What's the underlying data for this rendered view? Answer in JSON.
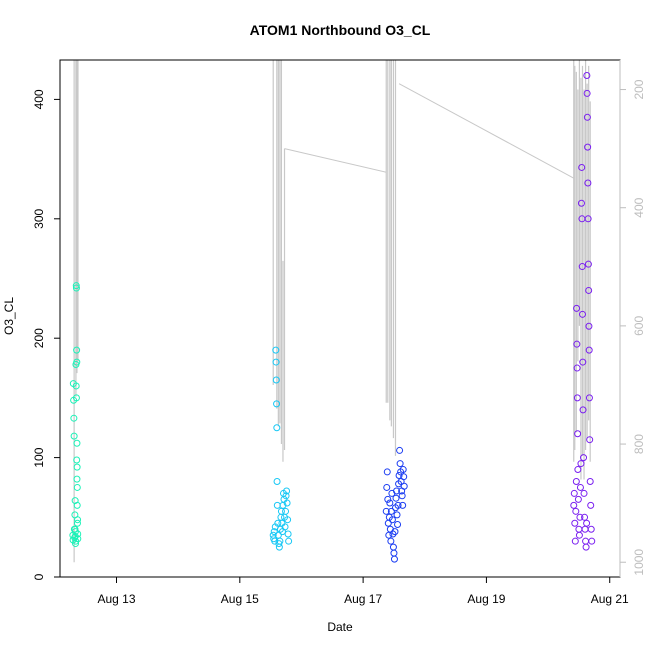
{
  "chart_data": {
    "type": "scatter",
    "title": "ATOM1 Northbound O3_CL",
    "xlabel": "Date",
    "ylabel": "O3_CL",
    "xlim": [
      "2023-08-12T02:00",
      "2023-08-21T04:00"
    ],
    "ylim": [
      0,
      433
    ],
    "x_ticks": [
      {
        "label": "Aug 13",
        "value": "2023-08-13"
      },
      {
        "label": "Aug 15",
        "value": "2023-08-15"
      },
      {
        "label": "Aug 17",
        "value": "2023-08-17"
      },
      {
        "label": "Aug 19",
        "value": "2023-08-19"
      },
      {
        "label": "Aug 21",
        "value": "2023-08-21"
      }
    ],
    "y_ticks": [
      0,
      100,
      200,
      300,
      400
    ],
    "y2_ticks": [
      200,
      400,
      600,
      800,
      1000
    ],
    "y2_range": [
      1025,
      150
    ],
    "grid": false,
    "colors": {
      "point_colors": [
        "#1cf2b8",
        "#18c8f5",
        "#1a3cf2",
        "#7a1ff0"
      ],
      "gray_line": "#c8c8c8",
      "axis": "#000000",
      "right_axis": "#bdbdbd"
    },
    "point_clusters": [
      {
        "start": "2023-08-12T07:00",
        "end": "2023-08-12T09:00",
        "color": "#1cf2b8"
      },
      {
        "start": "2023-08-15T13:00",
        "end": "2023-08-15T19:00",
        "color": "#18c8f5"
      },
      {
        "start": "2023-08-17T09:00",
        "end": "2023-08-17T16:00",
        "color": "#1a3cf2"
      },
      {
        "start": "2023-08-20T10:00",
        "end": "2023-08-20T17:00",
        "color": "#7a1ff0"
      }
    ],
    "series": [
      {
        "values": [
          [
            "2023-08-12T07:00",
            35
          ],
          [
            "2023-08-12T07:06",
            31
          ],
          [
            "2023-08-12T07:12",
            162
          ],
          [
            "2023-08-12T07:18",
            148
          ],
          [
            "2023-08-12T07:24",
            133
          ],
          [
            "2023-08-12T07:30",
            118
          ],
          [
            "2023-08-12T07:36",
            40
          ],
          [
            "2023-08-12T07:42",
            33
          ],
          [
            "2023-08-12T07:48",
            52
          ],
          [
            "2023-08-12T07:54",
            64
          ],
          [
            "2023-08-12T08:00",
            38
          ],
          [
            "2023-08-12T08:06",
            30
          ],
          [
            "2023-08-12T08:12",
            178
          ],
          [
            "2023-08-12T08:18",
            160
          ],
          [
            "2023-08-12T08:24",
            150
          ],
          [
            "2023-08-12T08:30",
            98
          ],
          [
            "2023-08-12T08:36",
            82
          ],
          [
            "2023-08-12T08:42",
            60
          ],
          [
            "2023-08-12T08:48",
            45
          ],
          [
            "2023-08-12T08:54",
            36
          ],
          [
            "2023-08-12T08:20",
            244
          ],
          [
            "2023-08-12T08:24",
            242
          ],
          [
            "2023-08-12T08:28",
            190
          ],
          [
            "2023-08-12T08:32",
            180
          ],
          [
            "2023-08-12T08:36",
            112
          ],
          [
            "2023-08-12T08:40",
            92
          ],
          [
            "2023-08-12T08:44",
            75
          ],
          [
            "2023-08-12T08:50",
            48
          ],
          [
            "2023-08-12T08:56",
            32
          ],
          [
            "2023-08-12T07:50",
            40
          ],
          [
            "2023-08-12T07:56",
            34
          ],
          [
            "2023-08-12T08:02",
            28
          ]
        ]
      },
      {
        "values": [
          [
            "2023-08-15T13:00",
            35
          ],
          [
            "2023-08-15T13:12",
            32
          ],
          [
            "2023-08-15T13:24",
            38
          ],
          [
            "2023-08-15T13:36",
            30
          ],
          [
            "2023-08-15T13:48",
            42
          ],
          [
            "2023-08-15T14:00",
            190
          ],
          [
            "2023-08-15T14:06",
            180
          ],
          [
            "2023-08-15T14:12",
            165
          ],
          [
            "2023-08-15T14:18",
            145
          ],
          [
            "2023-08-15T14:24",
            125
          ],
          [
            "2023-08-15T14:30",
            80
          ],
          [
            "2023-08-15T14:36",
            60
          ],
          [
            "2023-08-15T14:48",
            45
          ],
          [
            "2023-08-15T15:00",
            35
          ],
          [
            "2023-08-15T15:12",
            28
          ],
          [
            "2023-08-15T15:24",
            25
          ],
          [
            "2023-08-15T15:36",
            30
          ],
          [
            "2023-08-15T15:48",
            40
          ],
          [
            "2023-08-15T16:00",
            50
          ],
          [
            "2023-08-15T16:12",
            55
          ],
          [
            "2023-08-15T16:24",
            45
          ],
          [
            "2023-08-15T16:36",
            38
          ],
          [
            "2023-08-15T16:48",
            60
          ],
          [
            "2023-08-15T17:00",
            70
          ],
          [
            "2023-08-15T17:12",
            65
          ],
          [
            "2023-08-15T17:24",
            50
          ],
          [
            "2023-08-15T17:36",
            42
          ],
          [
            "2023-08-15T17:48",
            55
          ],
          [
            "2023-08-15T18:00",
            68
          ],
          [
            "2023-08-15T18:12",
            72
          ],
          [
            "2023-08-15T18:24",
            62
          ],
          [
            "2023-08-15T18:36",
            48
          ],
          [
            "2023-08-15T18:48",
            36
          ],
          [
            "2023-08-15T19:00",
            30
          ]
        ]
      },
      {
        "values": [
          [
            "2023-08-17T09:00",
            55
          ],
          [
            "2023-08-17T09:12",
            75
          ],
          [
            "2023-08-17T09:24",
            88
          ],
          [
            "2023-08-17T09:36",
            65
          ],
          [
            "2023-08-17T09:48",
            45
          ],
          [
            "2023-08-17T10:00",
            35
          ],
          [
            "2023-08-17T10:12",
            50
          ],
          [
            "2023-08-17T10:24",
            62
          ],
          [
            "2023-08-17T10:36",
            40
          ],
          [
            "2023-08-17T10:48",
            30
          ],
          [
            "2023-08-17T11:00",
            55
          ],
          [
            "2023-08-17T11:12",
            70
          ],
          [
            "2023-08-17T11:24",
            48
          ],
          [
            "2023-08-17T11:36",
            36
          ],
          [
            "2023-08-17T11:48",
            25
          ],
          [
            "2023-08-17T12:00",
            20
          ],
          [
            "2023-08-17T12:12",
            15
          ],
          [
            "2023-08-17T12:24",
            38
          ],
          [
            "2023-08-17T12:36",
            58
          ],
          [
            "2023-08-17T12:48",
            66
          ],
          [
            "2023-08-17T13:00",
            72
          ],
          [
            "2023-08-17T13:12",
            52
          ],
          [
            "2023-08-17T13:24",
            44
          ],
          [
            "2023-08-17T13:36",
            60
          ],
          [
            "2023-08-17T13:48",
            78
          ],
          [
            "2023-08-17T14:00",
            85
          ],
          [
            "2023-08-17T14:12",
            106
          ],
          [
            "2023-08-17T14:24",
            95
          ],
          [
            "2023-08-17T14:36",
            88
          ],
          [
            "2023-08-17T14:48",
            80
          ],
          [
            "2023-08-17T15:00",
            72
          ],
          [
            "2023-08-17T15:12",
            68
          ],
          [
            "2023-08-17T15:24",
            60
          ],
          [
            "2023-08-17T15:36",
            90
          ],
          [
            "2023-08-17T15:48",
            84
          ],
          [
            "2023-08-17T16:00",
            76
          ]
        ]
      },
      {
        "values": [
          [
            "2023-08-20T10:00",
            60
          ],
          [
            "2023-08-20T10:12",
            70
          ],
          [
            "2023-08-20T10:24",
            45
          ],
          [
            "2023-08-20T10:36",
            30
          ],
          [
            "2023-08-20T10:48",
            55
          ],
          [
            "2023-08-20T11:00",
            80
          ],
          [
            "2023-08-20T11:06",
            225
          ],
          [
            "2023-08-20T11:12",
            195
          ],
          [
            "2023-08-20T11:18",
            175
          ],
          [
            "2023-08-20T11:24",
            150
          ],
          [
            "2023-08-20T11:30",
            120
          ],
          [
            "2023-08-20T11:36",
            90
          ],
          [
            "2023-08-20T11:48",
            65
          ],
          [
            "2023-08-20T12:00",
            40
          ],
          [
            "2023-08-20T12:12",
            35
          ],
          [
            "2023-08-20T12:24",
            50
          ],
          [
            "2023-08-20T12:36",
            75
          ],
          [
            "2023-08-20T12:48",
            95
          ],
          [
            "2023-08-20T13:00",
            313
          ],
          [
            "2023-08-20T13:06",
            343
          ],
          [
            "2023-08-20T13:12",
            300
          ],
          [
            "2023-08-20T13:18",
            260
          ],
          [
            "2023-08-20T13:24",
            220
          ],
          [
            "2023-08-20T13:30",
            180
          ],
          [
            "2023-08-20T13:36",
            140
          ],
          [
            "2023-08-20T13:48",
            100
          ],
          [
            "2023-08-20T14:00",
            70
          ],
          [
            "2023-08-20T14:12",
            50
          ],
          [
            "2023-08-20T14:24",
            40
          ],
          [
            "2023-08-20T14:36",
            30
          ],
          [
            "2023-08-20T14:48",
            25
          ],
          [
            "2023-08-20T15:00",
            45
          ],
          [
            "2023-08-20T15:06",
            420
          ],
          [
            "2023-08-20T15:12",
            405
          ],
          [
            "2023-08-20T15:18",
            385
          ],
          [
            "2023-08-20T15:24",
            360
          ],
          [
            "2023-08-20T15:30",
            330
          ],
          [
            "2023-08-20T15:36",
            300
          ],
          [
            "2023-08-20T15:42",
            262
          ],
          [
            "2023-08-20T15:48",
            240
          ],
          [
            "2023-08-20T15:54",
            210
          ],
          [
            "2023-08-20T16:00",
            190
          ],
          [
            "2023-08-20T16:06",
            150
          ],
          [
            "2023-08-20T16:12",
            115
          ],
          [
            "2023-08-20T16:24",
            80
          ],
          [
            "2023-08-20T16:36",
            60
          ],
          [
            "2023-08-20T16:48",
            40
          ],
          [
            "2023-08-20T17:00",
            30
          ]
        ]
      }
    ],
    "gray_lines": [
      {
        "x": "2023-08-12T07:30",
        "y_top": 150,
        "y_bottom": 1000
      },
      {
        "x": "2023-08-12T08:12",
        "y_top": 150,
        "y_bottom": 720
      },
      {
        "x": "2023-08-12T08:36",
        "y_top": 150,
        "y_bottom": 680
      },
      {
        "x": "2023-08-12T09:00",
        "y_top": 150,
        "y_bottom": 660
      },
      {
        "x": "2023-08-15T13:00",
        "y_top": 150,
        "y_bottom": 700
      },
      {
        "x": "2023-08-15T14:24",
        "y_top": 150,
        "y_bottom": 740
      },
      {
        "x": "2023-08-15T15:00",
        "y_top": 150,
        "y_bottom": 770
      },
      {
        "x": "2023-08-15T15:36",
        "y_top": 150,
        "y_bottom": 765
      },
      {
        "x": "2023-08-15T16:12",
        "y_top": 150,
        "y_bottom": 800
      },
      {
        "x": "2023-08-15T16:48",
        "y_top": 490,
        "y_bottom": 830
      },
      {
        "x": "2023-08-15T17:24",
        "y_top": 300,
        "y_bottom": 810
      },
      {
        "x": "2023-08-17T09:00",
        "y_top": 150,
        "y_bottom": 730
      },
      {
        "x": "2023-08-17T09:36",
        "y_top": 150,
        "y_bottom": 730
      },
      {
        "x": "2023-08-17T10:24",
        "y_top": 150,
        "y_bottom": 760
      },
      {
        "x": "2023-08-17T11:00",
        "y_top": 150,
        "y_bottom": 770
      },
      {
        "x": "2023-08-17T11:48",
        "y_top": 150,
        "y_bottom": 790
      },
      {
        "x": "2023-08-17T12:36",
        "y_top": 150,
        "y_bottom": 820
      },
      {
        "x": "2023-08-20T10:00",
        "y_top": 150,
        "y_bottom": 830
      },
      {
        "x": "2023-08-20T10:24",
        "y_top": 160,
        "y_bottom": 810
      },
      {
        "x": "2023-08-20T11:00",
        "y_top": 170,
        "y_bottom": 780
      },
      {
        "x": "2023-08-20T11:36",
        "y_top": 200,
        "y_bottom": 660
      },
      {
        "x": "2023-08-20T12:12",
        "y_top": 150,
        "y_bottom": 600
      },
      {
        "x": "2023-08-20T12:48",
        "y_top": 180,
        "y_bottom": 860
      },
      {
        "x": "2023-08-20T13:24",
        "y_top": 160,
        "y_bottom": 820
      },
      {
        "x": "2023-08-20T14:00",
        "y_top": 200,
        "y_bottom": 860
      },
      {
        "x": "2023-08-20T14:36",
        "y_top": 150,
        "y_bottom": 810
      },
      {
        "x": "2023-08-20T15:12",
        "y_top": 190,
        "y_bottom": 790
      },
      {
        "x": "2023-08-20T15:48",
        "y_top": 160,
        "y_bottom": 760
      },
      {
        "x": "2023-08-20T16:24",
        "y_top": 220,
        "y_bottom": 830
      }
    ],
    "gray_connectors": [
      [
        [
          "2023-08-15T17:24",
          300
        ],
        [
          "2023-08-17T09:00",
          340
        ]
      ],
      [
        [
          "2023-08-17T14:00",
          190
        ],
        [
          "2023-08-20T10:00",
          350
        ]
      ]
    ]
  }
}
